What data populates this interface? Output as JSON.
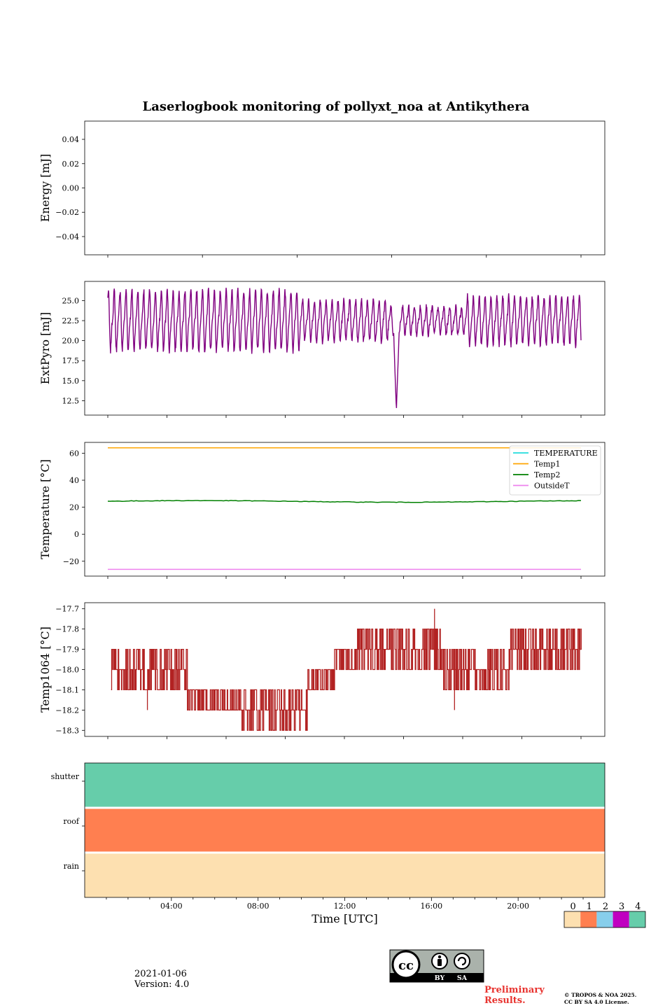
{
  "title": "Laserlogbook monitoring of pollyxt_noa at Antikythera",
  "chart_data": [
    {
      "type": "line",
      "ylabel": "Energy [mJ]",
      "ylim": [
        -0.055,
        0.055
      ],
      "yticks": [
        0.04,
        0.02,
        0.0,
        -0.02,
        -0.04
      ],
      "ytick_labels": [
        "0.04",
        "0.02",
        "0.00",
        "−0.02",
        "−0.04"
      ],
      "series": []
    },
    {
      "type": "line",
      "ylabel": "ExtPyro [mJ]",
      "ylim": [
        10.7,
        27.4
      ],
      "yticks": [
        25.0,
        22.5,
        20.0,
        17.5,
        15.0,
        12.5
      ],
      "ytick_labels": [
        "25.0",
        "22.5",
        "20.0",
        "17.5",
        "15.0",
        "12.5"
      ],
      "x_hours": [
        0.6,
        22.3
      ],
      "series": [
        {
          "color": "#800080",
          "oscillation_period_h": 0.27,
          "mean": 22.5,
          "amplitude_early": 3.2,
          "amplitude_mid": 1.5,
          "amplitude_late": 2.6,
          "min": 11.3,
          "max": 26.6,
          "dip_time": "13:50"
        }
      ]
    },
    {
      "type": "line",
      "ylabel": "Temperature [°C]",
      "ylim": [
        -31,
        68
      ],
      "yticks": [
        60,
        40,
        20,
        0,
        -20
      ],
      "ytick_labels": [
        "60",
        "40",
        "20",
        "0",
        "−20"
      ],
      "legend": "top-right",
      "series": [
        {
          "name": "TEMPERATURE",
          "color": "#22dddd",
          "values": []
        },
        {
          "name": "Temp1",
          "color": "#ffa500",
          "value": 64
        },
        {
          "name": "Temp2",
          "color": "#008000",
          "value": 24.3
        },
        {
          "name": "OutsideT",
          "color": "#ee82ee",
          "value": -26
        }
      ]
    },
    {
      "type": "line",
      "ylabel": "Temp1064 [°C]",
      "ylim": [
        -18.33,
        -17.67
      ],
      "yticks": [
        -17.7,
        -17.8,
        -17.9,
        -18.0,
        -18.1,
        -18.2,
        -18.3
      ],
      "ytick_labels": [
        "−17.7",
        "−17.8",
        "−17.9",
        "−18.0",
        "−18.1",
        "−18.2",
        "−18.3"
      ],
      "series": [
        {
          "color": "#b22222",
          "segments": [
            {
              "from": "00:45",
              "to": "04:15",
              "levels": [
                -18.0,
                -18.1,
                -17.9
              ]
            },
            {
              "from": "04:15",
              "to": "06:45",
              "levels": [
                -18.1,
                -18.2
              ]
            },
            {
              "from": "06:45",
              "to": "09:45",
              "levels": [
                -18.2,
                -18.3,
                -18.1
              ]
            },
            {
              "from": "09:45",
              "to": "11:00",
              "levels": [
                -18.0,
                -18.1
              ]
            },
            {
              "from": "11:00",
              "to": "12:00",
              "levels": [
                -17.9,
                -18.0
              ]
            },
            {
              "from": "12:00",
              "to": "16:00",
              "levels": [
                -17.8,
                -17.9,
                -18.0
              ]
            },
            {
              "from": "16:00",
              "to": "19:00",
              "levels": [
                -18.0,
                -18.1,
                -17.9
              ]
            },
            {
              "from": "19:00",
              "to": "22:20",
              "levels": [
                -17.9,
                -18.0,
                -17.8
              ]
            }
          ],
          "spikes": [
            {
              "time": "15:35",
              "value": -17.7
            },
            {
              "time": "02:25",
              "value": -18.2
            },
            {
              "time": "16:30",
              "value": -18.2
            }
          ]
        }
      ]
    },
    {
      "type": "heatmap",
      "rows": [
        "shutter",
        "roof",
        "rain"
      ],
      "row_values": [
        4,
        1,
        0
      ],
      "xlabel": "Time [UTC]",
      "xtick_labels": [
        "04:00",
        "08:00",
        "12:00",
        "16:00",
        "20:00"
      ],
      "xticks_hours": [
        4,
        8,
        12,
        16,
        20
      ],
      "xlim_hours": [
        0,
        24
      ]
    }
  ],
  "colorbar": {
    "labels": [
      "0",
      "1",
      "2",
      "3",
      "4"
    ],
    "colors": [
      "#fde0b0",
      "#ff7f50",
      "#87ceeb",
      "#c000c0",
      "#66cdaa"
    ]
  },
  "footer": {
    "date": "2021-01-06",
    "version": "Version: 4.0",
    "preliminary": [
      "Preliminary",
      "Results."
    ],
    "copyright": [
      "© TROPOS & NOA 2025.",
      "CC BY SA 4.0 License."
    ],
    "license_badge": "cc-by-sa-icon",
    "license_badge_text": [
      "BY",
      "SA"
    ]
  }
}
